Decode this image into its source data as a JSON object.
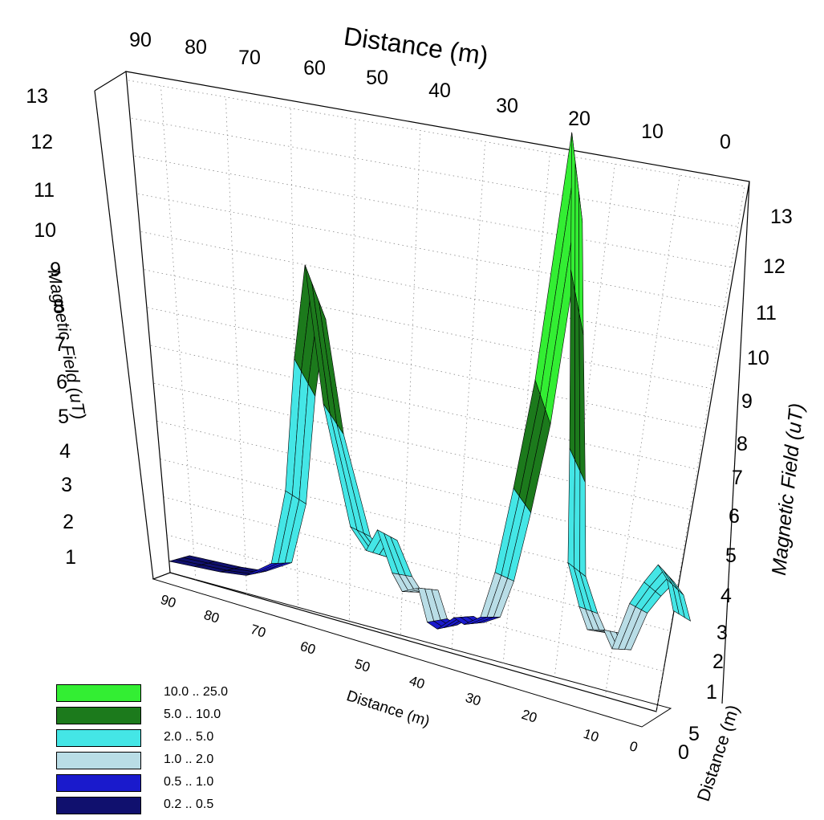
{
  "chart_data": {
    "type": "3d-surface",
    "title": "",
    "top_x_axis": {
      "label": "Distance (m)",
      "ticks": [
        "90",
        "80",
        "70",
        "60",
        "50",
        "40",
        "30",
        "20",
        "10",
        "0"
      ]
    },
    "bottom_x_axis": {
      "label": "Distance (m)",
      "ticks": [
        "90",
        "80",
        "70",
        "60",
        "50",
        "40",
        "30",
        "20",
        "10",
        "0"
      ]
    },
    "depth_axis": {
      "label": "Distance (m)",
      "ticks": [
        "0",
        "5"
      ]
    },
    "left_z_axis": {
      "label": "Magnetic Field (uT)",
      "ticks": [
        "1",
        "2",
        "3",
        "4",
        "5",
        "6",
        "7",
        "8",
        "9",
        "10",
        "11",
        "12",
        "13"
      ]
    },
    "right_z_axis": {
      "label": "Magnetic Field (uT)",
      "ticks": [
        "1",
        "2",
        "3",
        "4",
        "5",
        "6",
        "7",
        "8",
        "9",
        "10",
        "11",
        "12",
        "13"
      ]
    },
    "zlim": [
      0,
      13
    ],
    "xlim": [
      0,
      95
    ],
    "grid": true,
    "legend_placement": "bottom-left",
    "color_bands": [
      {
        "label": "10.0 .. 25.0",
        "range": [
          10.0,
          25.0
        ],
        "color": "#33ee33"
      },
      {
        "label": "5.0 .. 10.0",
        "range": [
          5.0,
          10.0
        ],
        "color": "#1c7a1c"
      },
      {
        "label": "2.0 .. 5.0",
        "range": [
          2.0,
          5.0
        ],
        "color": "#44e6e6"
      },
      {
        "label": "1.0 .. 2.0",
        "range": [
          1.0,
          2.0
        ],
        "color": "#b9dde6"
      },
      {
        "label": "0.5 .. 1.0",
        "range": [
          0.5,
          1.0
        ],
        "color": "#1a1acc"
      },
      {
        "label": "0.2 .. 0.5",
        "range": [
          0.2,
          0.5
        ],
        "color": "#10106e"
      }
    ],
    "profile": {
      "name": "",
      "x": [
        95,
        90,
        85,
        80,
        75,
        72,
        70,
        68,
        65,
        60,
        57,
        55,
        52,
        50,
        47,
        45,
        43,
        40,
        38,
        35,
        33,
        31,
        29,
        27,
        25,
        22,
        20,
        17,
        15,
        12,
        10,
        8,
        6,
        4,
        2,
        0
      ],
      "y": [
        0.3,
        0.35,
        0.4,
        0.5,
        1.0,
        3.0,
        6.5,
        9.0,
        5.5,
        2.5,
        2.0,
        2.6,
        1.6,
        1.2,
        1.4,
        0.6,
        0.5,
        0.9,
        0.8,
        1.1,
        2.3,
        4.5,
        7.3,
        13.6,
        10.2,
        5.8,
        3.0,
        2.0,
        1.5,
        1.6,
        1.2,
        2.4,
        3.0,
        3.5,
        3.2,
        2.5
      ]
    }
  }
}
